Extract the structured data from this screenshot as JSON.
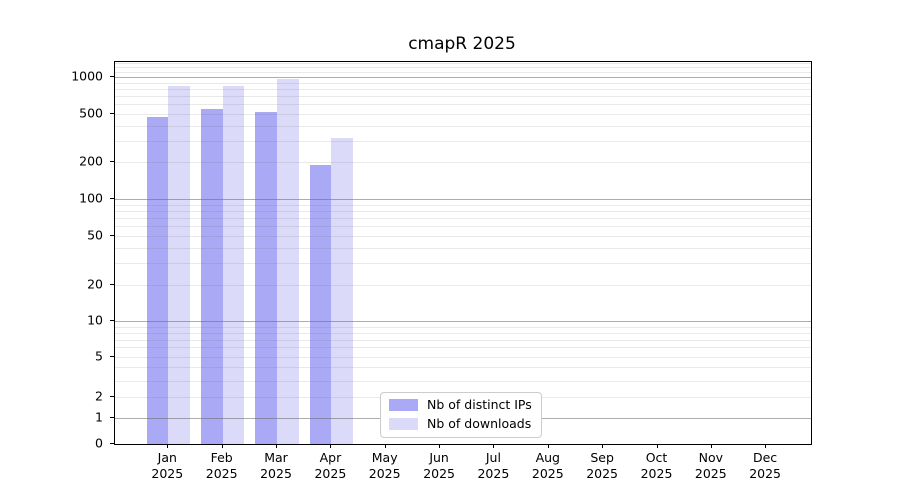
{
  "chart_data": {
    "type": "bar",
    "title": "cmapR 2025",
    "categories": [
      "Jan 2025",
      "Feb 2025",
      "Mar 2025",
      "Apr 2025",
      "May 2025",
      "Jun 2025",
      "Jul 2025",
      "Aug 2025",
      "Sep 2025",
      "Oct 2025",
      "Nov 2025",
      "Dec 2025"
    ],
    "series": [
      {
        "name": "Nb of distinct IPs",
        "color": "#a9a9f5",
        "values": [
          470,
          550,
          520,
          190,
          null,
          null,
          null,
          null,
          null,
          null,
          null,
          null
        ]
      },
      {
        "name": "Nb of downloads",
        "color": "#dbdbf9",
        "values": [
          840,
          840,
          960,
          315,
          null,
          null,
          null,
          null,
          null,
          null,
          null,
          null
        ]
      }
    ],
    "xlabel": "",
    "ylabel": "",
    "yscale": "asinh",
    "asinh_linear_width": 2,
    "ylim": [
      0,
      1324
    ],
    "ytick_labels": [
      "0",
      "1",
      "2",
      "5",
      "10",
      "20",
      "50",
      "100",
      "200",
      "500",
      "1000"
    ],
    "major_grid_values": [
      1,
      10,
      100,
      1000
    ],
    "grid": "both",
    "legend_position": "lower center"
  },
  "colors": {
    "major_grid": "#a9a9a9",
    "minor_grid": "#e9e9e9",
    "axis_line": "#000000",
    "text": "#000000",
    "background": "#ffffff"
  }
}
